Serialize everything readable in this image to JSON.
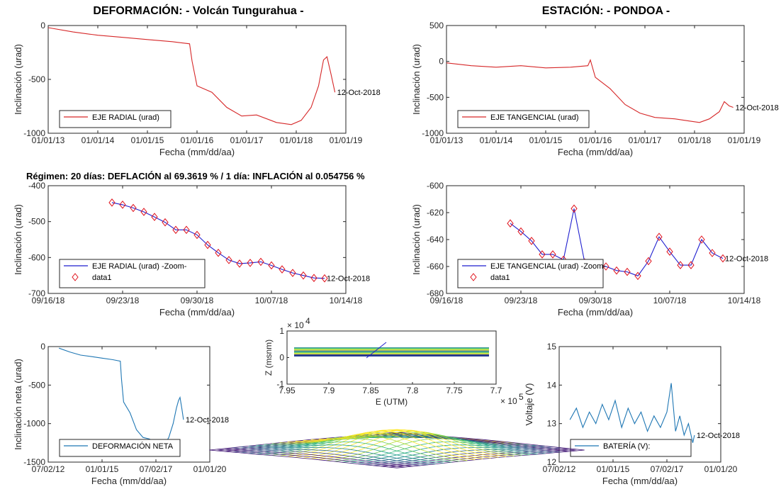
{
  "titles": {
    "left": "DEFORMACIÓN: - Volcán Tungurahua -",
    "right": "ESTACIÓN: - PONDOA -",
    "regime": "Régimen: 20 días: DEFLACIÓN al 69.3619 % / 1 día: INFLACIÓN al 0.054756 %"
  },
  "colors": {
    "red": "#d62728",
    "blue": "#1f1fcf",
    "teal": "#1f77b4",
    "axis": "#262626"
  },
  "chart_data": [
    {
      "id": "radial",
      "type": "line",
      "xlabel": "Fecha (mm/dd/aa)",
      "ylabel": "Inclinación (urad)",
      "xticks": [
        "01/01/13",
        "01/01/14",
        "01/01/15",
        "01/01/16",
        "01/01/17",
        "01/01/18",
        "01/01/19"
      ],
      "yticks": [
        "0",
        "-500",
        "-1000"
      ],
      "ylim": [
        -1000,
        0
      ],
      "xlim": [
        2013.0,
        2019.0
      ],
      "legend": [
        "EJE RADIAL (urad)"
      ],
      "end_label": "12-Oct-2018",
      "x": [
        2013.0,
        2013.5,
        2014.0,
        2014.5,
        2015.0,
        2015.5,
        2015.85,
        2015.9,
        2016.0,
        2016.3,
        2016.6,
        2016.9,
        2017.2,
        2017.6,
        2017.9,
        2018.1,
        2018.3,
        2018.45,
        2018.55,
        2018.62,
        2018.7,
        2018.78
      ],
      "y": [
        -20,
        -60,
        -90,
        -110,
        -130,
        -150,
        -170,
        -330,
        -560,
        -620,
        -760,
        -840,
        -830,
        -900,
        -920,
        -880,
        -760,
        -560,
        -320,
        -290,
        -450,
        -620
      ]
    },
    {
      "id": "tangencial",
      "type": "line",
      "xlabel": "Fecha (mm/dd/aa)",
      "ylabel": "Inclinación (urad)",
      "xticks": [
        "01/01/13",
        "01/01/14",
        "01/01/15",
        "01/01/16",
        "01/01/17",
        "01/01/18",
        "01/01/19"
      ],
      "yticks": [
        "500",
        "0",
        "-500",
        "-1000"
      ],
      "ylim": [
        -1000,
        500
      ],
      "xlim": [
        2013.0,
        2019.0
      ],
      "legend": [
        "EJE TANGENCIAL (urad)"
      ],
      "end_label": "12-Oct-2018",
      "x": [
        2013.0,
        2013.5,
        2014.0,
        2014.5,
        2015.0,
        2015.5,
        2015.85,
        2015.9,
        2016.0,
        2016.3,
        2016.6,
        2016.9,
        2017.2,
        2017.6,
        2017.9,
        2018.1,
        2018.3,
        2018.5,
        2018.6,
        2018.7,
        2018.78
      ],
      "y": [
        -20,
        -60,
        -80,
        -60,
        -90,
        -80,
        -60,
        20,
        -220,
        -380,
        -600,
        -720,
        -780,
        -800,
        -830,
        -850,
        -800,
        -700,
        -560,
        -620,
        -640
      ]
    },
    {
      "id": "radial-zoom",
      "type": "line",
      "xlabel": "Fecha (mm/dd/aa)",
      "ylabel": "Inclinación (urad)",
      "xticks": [
        "09/16/18",
        "09/23/18",
        "09/30/18",
        "10/07/18",
        "10/14/18"
      ],
      "yticks": [
        "-400",
        "-500",
        "-600",
        "-700"
      ],
      "ylim": [
        -700,
        -400
      ],
      "xlim": [
        0,
        28
      ],
      "legend": [
        "EJE RADIAL (urad) -Zoom-",
        "data1"
      ],
      "end_label": "12-Oct-2018",
      "x": [
        6,
        7,
        8,
        9,
        10,
        11,
        12,
        13,
        14,
        15,
        16,
        17,
        18,
        19,
        20,
        21,
        22,
        23,
        24,
        25,
        26
      ],
      "y": [
        -447,
        -453,
        -462,
        -473,
        -487,
        -502,
        -523,
        -523,
        -537,
        -565,
        -587,
        -607,
        -617,
        -615,
        -612,
        -622,
        -633,
        -643,
        -650,
        -657,
        -658
      ]
    },
    {
      "id": "tangencial-zoom",
      "type": "line",
      "xlabel": "Fecha (mm/dd/aa)",
      "ylabel": "Inclinación (urad)",
      "xticks": [
        "09/16/18",
        "09/23/18",
        "09/30/18",
        "10/07/18",
        "10/14/18"
      ],
      "yticks": [
        "-600",
        "-620",
        "-640",
        "-660",
        "-680"
      ],
      "ylim": [
        -680,
        -600
      ],
      "xlim": [
        0,
        28
      ],
      "legend": [
        "EJE TANGENCIAL (urad) -Zoom-",
        "data1"
      ],
      "end_label": "12-Oct-2018",
      "x": [
        6,
        7,
        8,
        9,
        10,
        11,
        12,
        13,
        14,
        15,
        16,
        17,
        18,
        19,
        20,
        21,
        22,
        23,
        24,
        25,
        26
      ],
      "y": [
        -628,
        -634,
        -641,
        -651,
        -651,
        -655,
        -617,
        -657,
        -658,
        -660,
        -663,
        -664,
        -667,
        -656,
        -638,
        -649,
        -659,
        -659,
        -640,
        -650,
        -654
      ]
    },
    {
      "id": "neta",
      "type": "line",
      "xlabel": "Fecha (mm/dd/aa)",
      "ylabel": "Inclinación neta (urad)",
      "xticks": [
        "07/02/12",
        "01/01/15",
        "07/02/17",
        "01/01/20"
      ],
      "yticks": [
        "0",
        "-500",
        "-1000",
        "-1500"
      ],
      "ylim": [
        -1500,
        0
      ],
      "xlim": [
        2012.5,
        2020.0
      ],
      "legend": [
        "DEFORMACIÓN NETA"
      ],
      "end_label": "12-Oct-2018",
      "x": [
        2013.0,
        2013.5,
        2014.0,
        2014.5,
        2015.0,
        2015.5,
        2015.85,
        2015.9,
        2016.0,
        2016.3,
        2016.6,
        2016.9,
        2017.2,
        2017.6,
        2017.9,
        2018.1,
        2018.3,
        2018.45,
        2018.55,
        2018.62,
        2018.7,
        2018.78
      ],
      "y": [
        -20,
        -70,
        -110,
        -130,
        -150,
        -170,
        -190,
        -420,
        -720,
        -860,
        -1080,
        -1180,
        -1200,
        -1260,
        -1270,
        -1180,
        -1000,
        -800,
        -700,
        -660,
        -800,
        -950
      ]
    },
    {
      "id": "bateria",
      "type": "line",
      "xlabel": "Fecha (mm/dd/aa)",
      "ylabel": "Voltaje (V)",
      "xticks": [
        "07/02/12",
        "01/01/15",
        "07/02/17",
        "01/01/20"
      ],
      "yticks": [
        "15",
        "14",
        "13",
        "12"
      ],
      "ylim": [
        12,
        15
      ],
      "xlim": [
        2012.5,
        2020.0
      ],
      "legend": [
        "BATERÍA (V):"
      ],
      "end_label": "12-Oct-2018",
      "x": [
        2013.0,
        2013.3,
        2013.6,
        2013.9,
        2014.2,
        2014.5,
        2014.8,
        2015.1,
        2015.4,
        2015.7,
        2016.0,
        2016.3,
        2016.6,
        2016.9,
        2017.2,
        2017.5,
        2017.7,
        2017.9,
        2018.1,
        2018.3,
        2018.5,
        2018.7,
        2018.78
      ],
      "y": [
        13.1,
        13.4,
        12.9,
        13.3,
        13.0,
        13.5,
        13.1,
        13.6,
        12.9,
        13.4,
        13.0,
        13.3,
        12.8,
        13.2,
        12.9,
        13.3,
        14.05,
        12.8,
        13.2,
        12.7,
        13.0,
        12.5,
        12.7
      ]
    },
    {
      "id": "map-3d",
      "type": "scatter",
      "xlabel": "E (UTM)",
      "ylabel": "Z (msnm)",
      "xticks": [
        "7.95",
        "7.9",
        "7.85",
        "7.8",
        "7.75",
        "7.7"
      ],
      "yticks": [
        "1",
        "0",
        "-1"
      ],
      "y_exponent": "× 10",
      "y_exponent_power": "4",
      "x_exponent": "× 10",
      "x_exponent_power": "5",
      "ylim": [
        -1,
        1
      ],
      "xlim": [
        7.7,
        7.95
      ]
    }
  ]
}
